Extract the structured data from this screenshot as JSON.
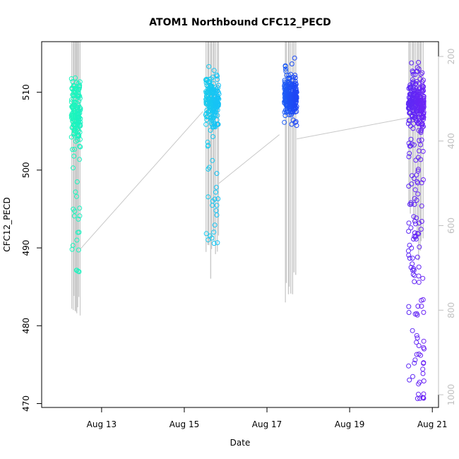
{
  "chart_data": {
    "type": "scatter",
    "title": "ATOM1 Northbound CFC12_PECD",
    "xlabel": "Date",
    "ylabel": "CFC12_PECD",
    "x_unit": "days since Aug 11 00:00",
    "xlim": [
      11.55,
      21.15
    ],
    "ylim": [
      469.5,
      516.5
    ],
    "y_ticks": [
      470,
      480,
      490,
      500,
      510
    ],
    "x_ticks": [
      {
        "day": 13,
        "label": "Aug 13"
      },
      {
        "day": 15,
        "label": "Aug 15"
      },
      {
        "day": 17,
        "label": "Aug 17"
      },
      {
        "day": 19,
        "label": "Aug 19"
      },
      {
        "day": 21,
        "label": "Aug 21"
      }
    ],
    "right_axis": {
      "label": "",
      "lim": [
        1030,
        165
      ],
      "ticks": [
        200,
        400,
        600,
        800,
        1000
      ],
      "color": "#c0c0c0"
    },
    "point_color_scale": [
      "#1cf5bd",
      "#17c2f7",
      "#1f3ff5",
      "#7a1ff5"
    ],
    "clusters": [
      {
        "x_start": 12.27,
        "x_end": 12.49,
        "core_center": 507.5,
        "core_sd": 2.0,
        "tail_min": 486.5,
        "tail_max": 510.8,
        "n_core": 140,
        "n_tail": 35,
        "color_t": 0.0
      },
      {
        "x_start": 15.52,
        "x_end": 15.84,
        "core_center": 508.8,
        "core_sd": 1.4,
        "tail_min": 490.5,
        "tail_max": 513.5,
        "n_core": 200,
        "n_tail": 40,
        "color_t": 0.3
      },
      {
        "x_start": 17.42,
        "x_end": 17.72,
        "core_center": 509.3,
        "core_sd": 1.2,
        "tail_min": 504.8,
        "tail_max": 514.8,
        "n_core": 230,
        "n_tail": 20,
        "color_t": 0.62
      },
      {
        "x_start": 20.42,
        "x_end": 20.8,
        "core_center": 508.5,
        "core_sd": 1.5,
        "tail_min": 470.5,
        "tail_max": 514.2,
        "n_core": 210,
        "n_tail": 150,
        "color_t": 0.92
      }
    ],
    "pressure_profile": {
      "series_name": "",
      "baseline_by_cluster": [
        655,
        350,
        405,
        318
      ],
      "spike_bottom_by_cluster": [
        820,
        745,
        810,
        705
      ],
      "transits": [
        {
          "from": [
            12.49,
            655
          ],
          "to": [
            15.45,
            330
          ]
        },
        {
          "from": [
            15.84,
            500
          ],
          "to": [
            17.3,
            385
          ]
        },
        {
          "from": [
            17.72,
            395
          ],
          "to": [
            20.42,
            345
          ]
        }
      ]
    }
  }
}
